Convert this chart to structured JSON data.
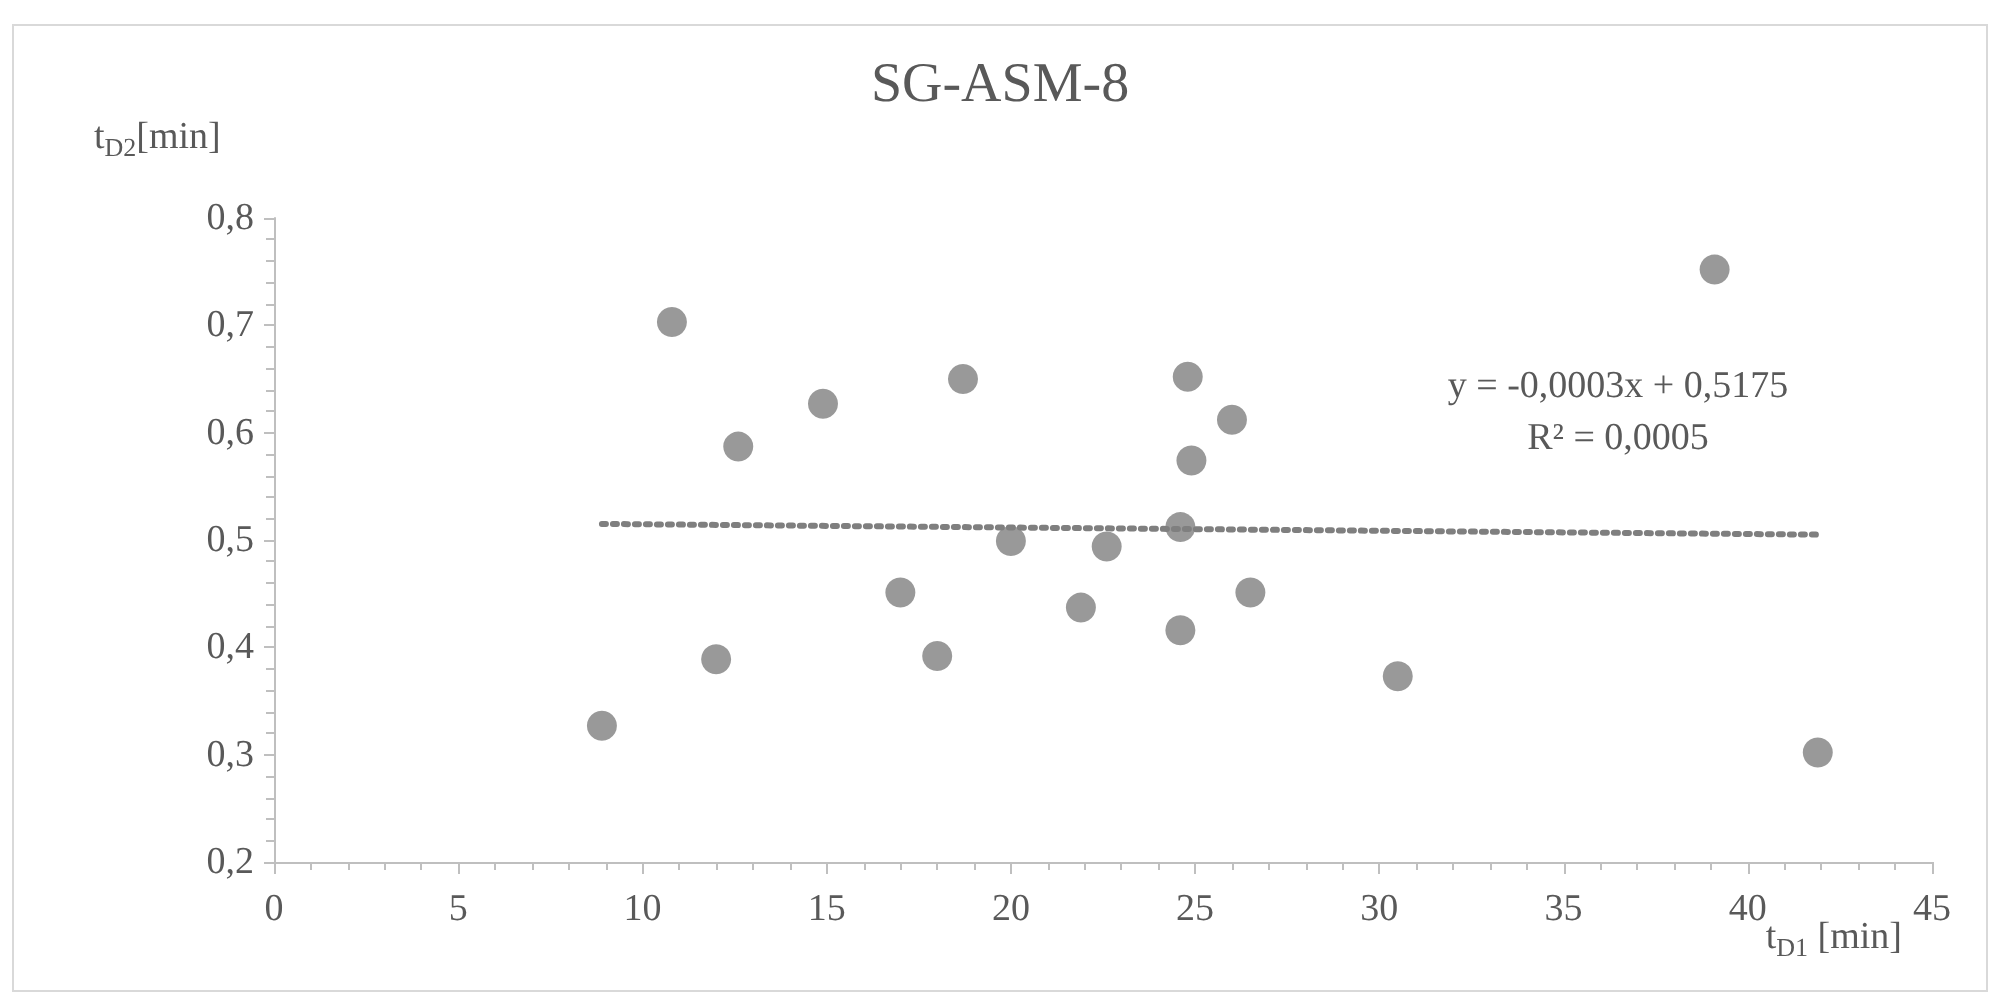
{
  "chart_data": {
    "type": "scatter",
    "title": "SG-ASM-8",
    "xlabel": "t$_{D1}$ [min]",
    "ylabel": "t$_{D2}$[min]",
    "annotations": [
      "y = -0,0003x + 0,5175",
      "R² = 0,0005"
    ],
    "series": [
      {
        "color": "#7f7f7f",
        "x": [
          8.9,
          10.8,
          12.0,
          12.6,
          14.9,
          17.0,
          18.0,
          18.7,
          20.0,
          21.9,
          22.6,
          24.6,
          24.6,
          24.8,
          24.9,
          26.0,
          26.5,
          30.5,
          39.1,
          41.9
        ],
        "values": [
          0.327,
          0.703,
          0.389,
          0.587,
          0.627,
          0.451,
          0.392,
          0.65,
          0.499,
          0.437,
          0.494,
          0.512,
          0.416,
          0.652,
          0.574,
          0.612,
          0.451,
          0.373,
          0.752,
          0.302
        ]
      },
      {
        "type": "line",
        "color": "#7f7f7f",
        "line_style": "dotted",
        "marker": "none",
        "x": [
          8.9,
          41.9
        ],
        "values": [
          0.515,
          0.505
        ]
      }
    ],
    "marker": "circle",
    "grid": false,
    "xlim": [
      0,
      45
    ],
    "xticks": [
      0,
      5,
      10,
      15,
      20,
      25,
      30,
      35,
      40,
      45
    ],
    "ylim": [
      0.2,
      0.8
    ],
    "yticks": [
      {
        "value": 0.2,
        "label": "0,2"
      },
      {
        "value": 0.3,
        "label": "0,3"
      },
      {
        "value": 0.4,
        "label": "0,4"
      },
      {
        "value": 0.5,
        "label": "0,5"
      },
      {
        "value": 0.6,
        "label": "0,6"
      },
      {
        "value": 0.7,
        "label": "0,7"
      },
      {
        "value": 0.8,
        "label": "0,8"
      }
    ]
  }
}
